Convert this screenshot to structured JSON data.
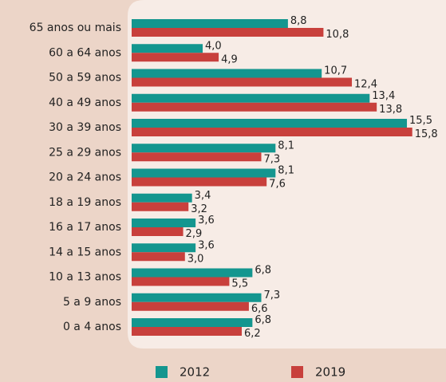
{
  "chart_data": {
    "type": "bar",
    "orientation": "horizontal",
    "categories": [
      "65 anos ou mais",
      "60 a 64 anos",
      "50 a 59 anos",
      "40 a 49 anos",
      "30 a 39 anos",
      "25 a 29 anos",
      "20 a 24 anos",
      "18 a 19 anos",
      "16 a 17 anos",
      "14 a 15 anos",
      "10 a 13 anos",
      "5 a 9 anos",
      "0 a 4 anos"
    ],
    "series": [
      {
        "name": "2012",
        "color": "#14968f",
        "values": [
          8.8,
          4.0,
          10.7,
          13.4,
          15.5,
          8.1,
          8.1,
          3.4,
          3.6,
          3.6,
          6.8,
          7.3,
          6.8
        ],
        "value_labels": [
          "8,8",
          "4,0",
          "10,7",
          "13,4",
          "15,5",
          "8,1",
          "8,1",
          "3,4",
          "3,6",
          "3,6",
          "6,8",
          "7,3",
          "6,8"
        ]
      },
      {
        "name": "2019",
        "color": "#c8403c",
        "values": [
          10.8,
          4.9,
          12.4,
          13.8,
          15.8,
          7.3,
          7.6,
          3.2,
          2.9,
          3.0,
          5.5,
          6.6,
          6.2
        ],
        "value_labels": [
          "10,8",
          "4,9",
          "12,4",
          "13,8",
          "15,8",
          "7,3",
          "7,6",
          "3,2",
          "2,9",
          "3,0",
          "5,5",
          "6,6",
          "6,2"
        ]
      }
    ],
    "xlim": [
      0,
      17.7
    ]
  }
}
